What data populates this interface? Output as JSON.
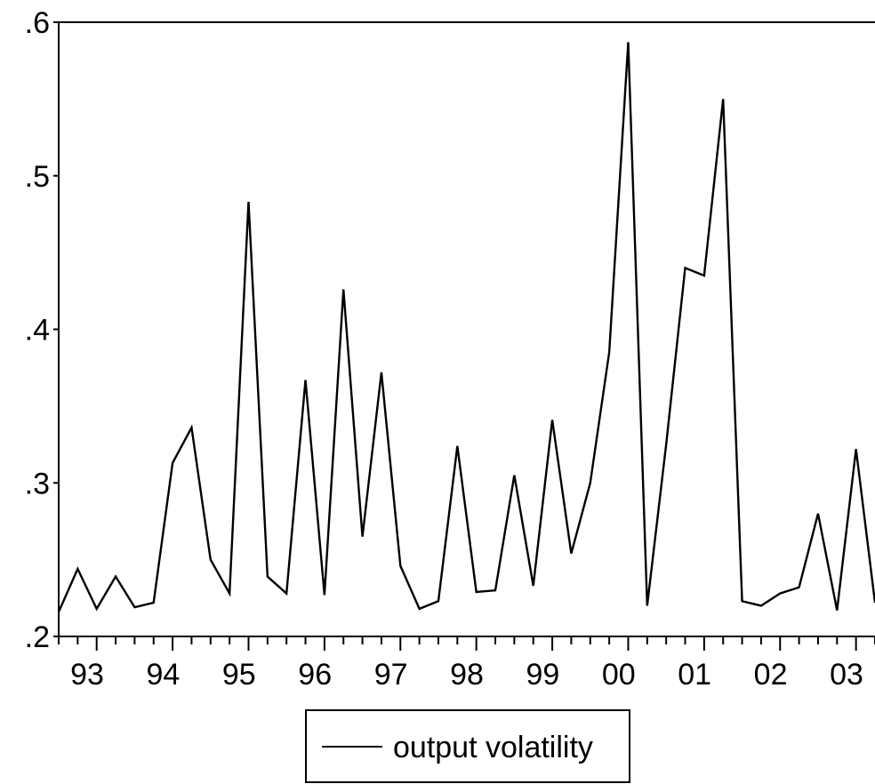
{
  "chart_data": {
    "type": "line",
    "title": "",
    "xlabel": "",
    "ylabel": "",
    "x_start": "1992Q3",
    "frequency": "quarterly",
    "year_labels": [
      "93",
      "94",
      "95",
      "96",
      "97",
      "98",
      "99",
      "00",
      "01",
      "02",
      "03"
    ],
    "ylim": [
      0.2,
      0.6
    ],
    "yticks": [
      {
        "value": 0.2,
        "label": ".2"
      },
      {
        "value": 0.3,
        "label": ".3"
      },
      {
        "value": 0.4,
        "label": ".4"
      },
      {
        "value": 0.5,
        "label": ".5"
      },
      {
        "value": 0.6,
        "label": ".6"
      }
    ],
    "grid": false,
    "legend_position": "bottom-center",
    "series": [
      {
        "name": "output volatility",
        "color": "#000000",
        "values": [
          0.216,
          0.244,
          0.218,
          0.239,
          0.219,
          0.222,
          0.313,
          0.336,
          0.25,
          0.228,
          0.483,
          0.239,
          0.228,
          0.367,
          0.227,
          0.426,
          0.265,
          0.372,
          0.246,
          0.218,
          0.223,
          0.324,
          0.229,
          0.23,
          0.305,
          0.233,
          0.341,
          0.254,
          0.3,
          0.385,
          0.587,
          0.22,
          0.325,
          0.44,
          0.435,
          0.55,
          0.223,
          0.22,
          0.228,
          0.232,
          0.28,
          0.217,
          0.322,
          0.222
        ]
      }
    ]
  }
}
